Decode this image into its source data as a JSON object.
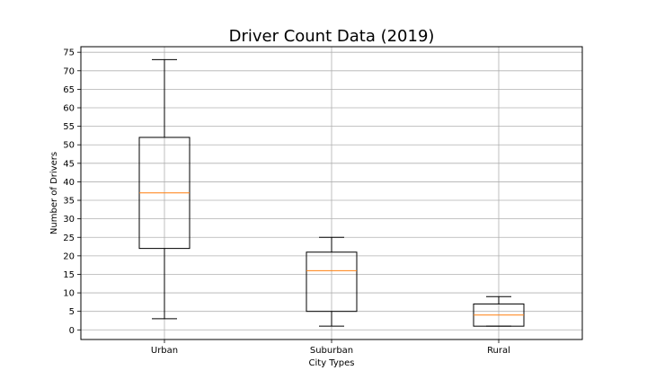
{
  "chart_data": {
    "type": "box",
    "title": "Driver Count Data (2019)",
    "xlabel": "City Types",
    "ylabel": "Number of Drivers",
    "categories": [
      "Urban",
      "Suburban",
      "Rural"
    ],
    "boxes": [
      {
        "category": "Urban",
        "whisker_low": 3,
        "q1": 22,
        "median": 37,
        "q3": 52,
        "whisker_high": 73
      },
      {
        "category": "Suburban",
        "whisker_low": 1,
        "q1": 5,
        "median": 16,
        "q3": 21,
        "whisker_high": 25
      },
      {
        "category": "Rural",
        "whisker_low": 1,
        "q1": 1,
        "median": 4,
        "q3": 7,
        "whisker_high": 9
      }
    ],
    "ylim": [
      -2.6,
      76.5
    ],
    "yticks": [
      0,
      5,
      10,
      15,
      20,
      25,
      30,
      35,
      40,
      45,
      50,
      55,
      60,
      65,
      70,
      75
    ],
    "grid": true,
    "colors": {
      "box": "#000000",
      "median": "#ff7f0e",
      "grid": "#b0b0b0"
    }
  }
}
